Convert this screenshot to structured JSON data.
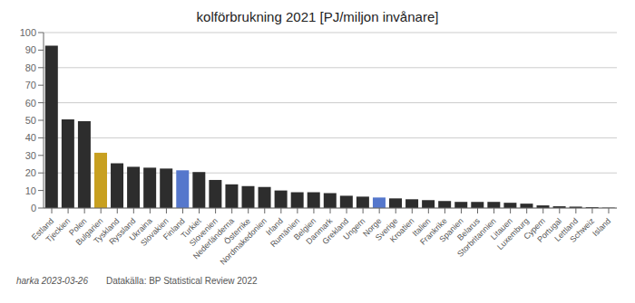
{
  "chart_data": {
    "type": "bar",
    "title": "kolförbrukning 2021 [PJ/miljon invånare]",
    "categories": [
      "Estland",
      "Tjeckien",
      "Polen",
      "Bulgarien",
      "Tyskland",
      "Ryssland",
      "Ukraina",
      "Slovakien",
      "Finland",
      "Turkiet",
      "Slovenien",
      "Nederländerna",
      "Österrike",
      "Nordmakedonien",
      "Irland",
      "Rumänien",
      "Belgien",
      "Danmark",
      "Grekland",
      "Ungern",
      "Norge",
      "Sverige",
      "Kroatien",
      "Italien",
      "Frankrike",
      "Spanien",
      "Belarus",
      "Storbritannien",
      "Litauen",
      "Luxemburg",
      "Cypern",
      "Portugal",
      "Lettland",
      "Schweiz",
      "Island"
    ],
    "values": [
      92.5,
      50.5,
      49.5,
      31.5,
      25.5,
      23.5,
      23.0,
      22.5,
      21.5,
      20.5,
      16.0,
      13.5,
      12.5,
      12.0,
      10.0,
      9.0,
      9.0,
      8.5,
      7.0,
      6.5,
      6.0,
      5.5,
      5.0,
      4.5,
      4.0,
      3.5,
      3.5,
      3.5,
      3.0,
      2.5,
      1.5,
      1.0,
      0.8,
      0.5,
      0.2
    ],
    "colors": [
      "#2d2d2d",
      "#2d2d2d",
      "#2d2d2d",
      "#c8a020",
      "#2d2d2d",
      "#2d2d2d",
      "#2d2d2d",
      "#2d2d2d",
      "#5577cc",
      "#2d2d2d",
      "#2d2d2d",
      "#2d2d2d",
      "#2d2d2d",
      "#2d2d2d",
      "#2d2d2d",
      "#2d2d2d",
      "#2d2d2d",
      "#2d2d2d",
      "#2d2d2d",
      "#2d2d2d",
      "#5577cc",
      "#2d2d2d",
      "#2d2d2d",
      "#2d2d2d",
      "#2d2d2d",
      "#2d2d2d",
      "#2d2d2d",
      "#2d2d2d",
      "#2d2d2d",
      "#2d2d2d",
      "#2d2d2d",
      "#2d2d2d",
      "#2d2d2d",
      "#2d2d2d",
      "#2d2d2d"
    ],
    "ylim": [
      0,
      100
    ],
    "yticks": [
      0,
      10,
      20,
      30,
      40,
      50,
      60,
      70,
      80,
      90,
      100
    ],
    "grid": true,
    "annotations": [
      "harka 2023-03-26",
      "Datakälla: BP Statistical Review 2022"
    ]
  }
}
